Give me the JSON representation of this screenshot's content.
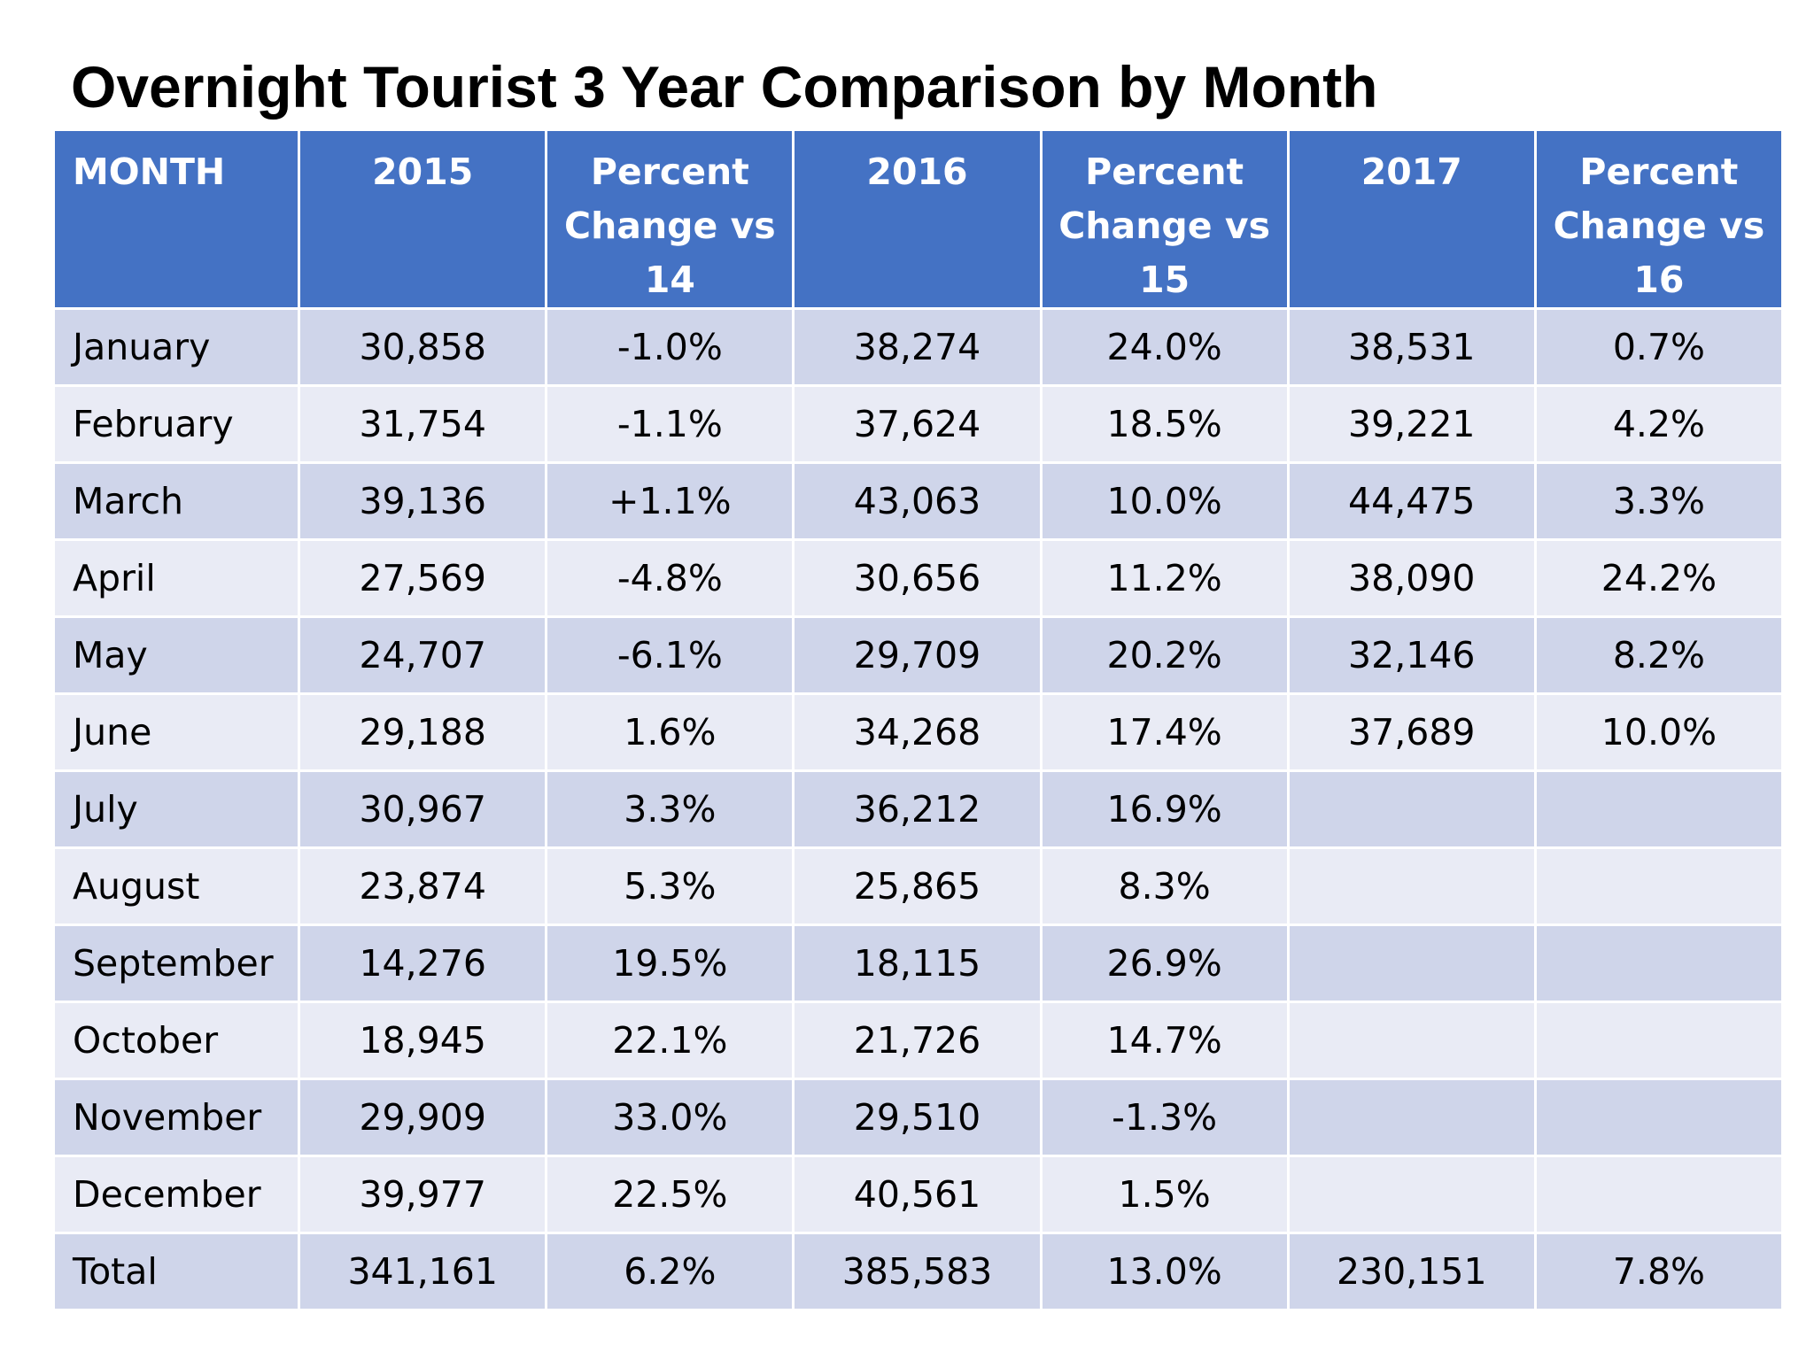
{
  "title": "Overnight Tourist 3 Year Comparison by Month",
  "colors": {
    "header_bg": "#4472C4",
    "header_text": "#FFFFFF",
    "row_dark": "#CFD5EA",
    "row_light": "#E9EBF5"
  },
  "chart_data": {
    "type": "table",
    "title": "Overnight Tourist 3 Year Comparison by Month",
    "columns": [
      "MONTH",
      "2015",
      "Percent Change vs 14",
      "2016",
      "Percent Change vs 15",
      "2017",
      "Percent Change vs 16"
    ],
    "rows": [
      [
        "January",
        "30,858",
        "-1.0%",
        "38,274",
        "24.0%",
        "38,531",
        "0.7%"
      ],
      [
        "February",
        "31,754",
        "-1.1%",
        "37,624",
        "18.5%",
        "39,221",
        "4.2%"
      ],
      [
        "March",
        "39,136",
        "+1.1%",
        "43,063",
        "10.0%",
        "44,475",
        "3.3%"
      ],
      [
        "April",
        "27,569",
        "-4.8%",
        "30,656",
        "11.2%",
        "38,090",
        "24.2%"
      ],
      [
        "May",
        "24,707",
        "-6.1%",
        "29,709",
        "20.2%",
        "32,146",
        "8.2%"
      ],
      [
        "June",
        "29,188",
        "1.6%",
        "34,268",
        "17.4%",
        "37,689",
        "10.0%"
      ],
      [
        "July",
        "30,967",
        "3.3%",
        "36,212",
        "16.9%",
        "",
        ""
      ],
      [
        "August",
        "23,874",
        "5.3%",
        "25,865",
        "8.3%",
        "",
        ""
      ],
      [
        "September",
        "14,276",
        "19.5%",
        "18,115",
        "26.9%",
        "",
        ""
      ],
      [
        "October",
        "18,945",
        "22.1%",
        "21,726",
        "14.7%",
        "",
        ""
      ],
      [
        "November",
        "29,909",
        "33.0%",
        "29,510",
        "-1.3%",
        "",
        ""
      ],
      [
        "December",
        "39,977",
        "22.5%",
        "40,561",
        "1.5%",
        "",
        ""
      ],
      [
        "Total",
        "341,161",
        "6.2%",
        "385,583",
        "13.0%",
        "230,151",
        "7.8%"
      ]
    ]
  }
}
